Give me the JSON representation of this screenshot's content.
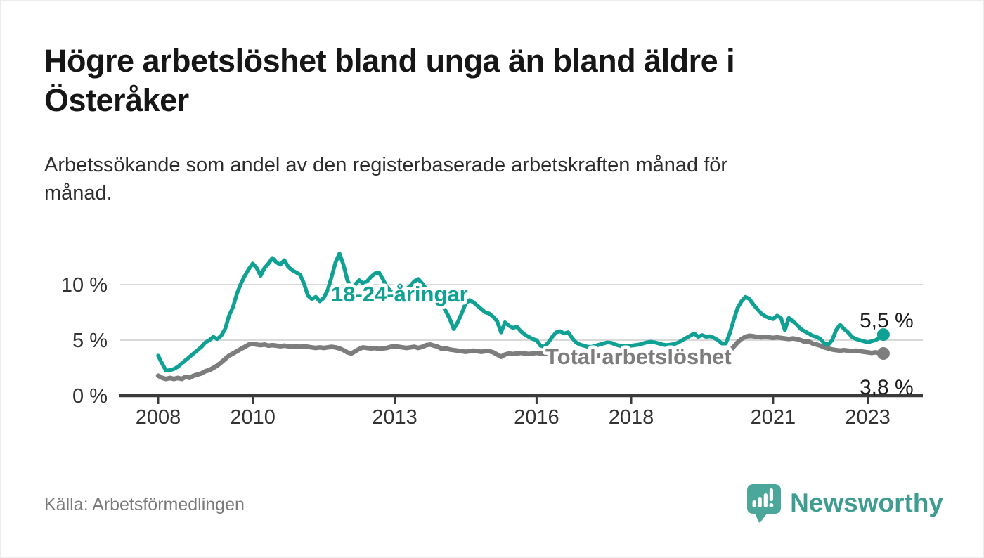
{
  "header": {
    "title_lines": [
      "Högre arbetslöshet bland unga än bland äldre i",
      "Österåker"
    ],
    "subtitle_lines": [
      "Arbetssökande som andel av den registerbaserade arbetskraften månad för",
      "månad."
    ]
  },
  "chart_data": {
    "type": "line",
    "unit": "%",
    "frequency": "monthly",
    "x_start": {
      "year": 2008,
      "month": 1
    },
    "x_end": {
      "year": 2023,
      "month": 5
    },
    "x_tick_years": [
      2008,
      2010,
      2013,
      2016,
      2018,
      2021,
      2023
    ],
    "y_ticks": [
      {
        "value": 0,
        "label": "0 %"
      },
      {
        "value": 5,
        "label": "5 %"
      },
      {
        "value": 10,
        "label": "10 %"
      }
    ],
    "ylim": [
      0,
      13.5
    ],
    "grid": "horizontal",
    "series": [
      {
        "name": "18-24-åringar",
        "color": "#10A195",
        "end_label": "5,5 %",
        "last_value": 5.5,
        "values": [
          3.6,
          2.9,
          2.25,
          2.3,
          2.4,
          2.6,
          2.9,
          3.2,
          3.5,
          3.8,
          4.1,
          4.4,
          4.8,
          5.0,
          5.3,
          5.1,
          5.4,
          6.0,
          7.2,
          8.0,
          9.2,
          10.1,
          10.8,
          11.4,
          11.9,
          11.5,
          10.8,
          11.5,
          11.9,
          12.4,
          12.0,
          11.8,
          12.2,
          11.6,
          11.3,
          11.1,
          10.9,
          10.1,
          9.0,
          8.7,
          8.9,
          8.5,
          8.8,
          9.5,
          10.7,
          12.0,
          12.8,
          11.8,
          10.4,
          9.7,
          10.0,
          10.4,
          10.1,
          10.3,
          10.7,
          11.0,
          11.1,
          10.5,
          9.8,
          9.4,
          9.1,
          9.5,
          9.8,
          9.6,
          9.9,
          10.3,
          10.5,
          10.1,
          9.6,
          9.2,
          8.8,
          8.5,
          8.2,
          7.6,
          6.9,
          6.0,
          6.6,
          7.4,
          8.3,
          8.6,
          8.4,
          8.1,
          7.8,
          7.5,
          7.4,
          7.1,
          6.7,
          5.7,
          6.6,
          6.3,
          6.1,
          6.2,
          5.8,
          5.5,
          5.3,
          5.1,
          5.0,
          4.5,
          4.4,
          4.8,
          5.3,
          5.7,
          5.8,
          5.6,
          5.7,
          5.2,
          4.8,
          4.6,
          4.5,
          4.4,
          4.4,
          4.5,
          4.6,
          4.7,
          4.8,
          4.75,
          4.6,
          4.5,
          4.45,
          4.5,
          4.5,
          4.55,
          4.6,
          4.7,
          4.8,
          4.85,
          4.8,
          4.7,
          4.6,
          4.55,
          4.6,
          4.65,
          4.8,
          5.0,
          5.2,
          5.4,
          5.6,
          5.3,
          5.45,
          5.3,
          5.35,
          5.2,
          5.0,
          4.7,
          4.7,
          5.6,
          6.8,
          7.9,
          8.5,
          8.9,
          8.7,
          8.2,
          7.8,
          7.4,
          7.15,
          7.0,
          6.9,
          7.2,
          7.0,
          5.9,
          7.0,
          6.7,
          6.4,
          6.0,
          5.8,
          5.6,
          5.4,
          5.3,
          5.1,
          4.7,
          4.6,
          5.0,
          5.9,
          6.4,
          6.0,
          5.7,
          5.3,
          5.1,
          5.0,
          4.9,
          4.8,
          4.9,
          5.0,
          5.2,
          5.5
        ]
      },
      {
        "name": "Total arbetslöshet",
        "color": "#7D7D7D",
        "end_label": "3,8 %",
        "last_value": 3.8,
        "values": [
          1.8,
          1.6,
          1.5,
          1.6,
          1.5,
          1.6,
          1.5,
          1.7,
          1.6,
          1.8,
          1.9,
          2.0,
          2.2,
          2.3,
          2.5,
          2.7,
          3.0,
          3.3,
          3.6,
          3.8,
          4.0,
          4.2,
          4.4,
          4.6,
          4.65,
          4.6,
          4.55,
          4.6,
          4.5,
          4.55,
          4.5,
          4.45,
          4.5,
          4.45,
          4.4,
          4.45,
          4.4,
          4.45,
          4.4,
          4.35,
          4.3,
          4.35,
          4.3,
          4.35,
          4.4,
          4.35,
          4.25,
          4.1,
          3.9,
          3.8,
          4.0,
          4.2,
          4.35,
          4.3,
          4.25,
          4.3,
          4.2,
          4.25,
          4.3,
          4.4,
          4.45,
          4.4,
          4.35,
          4.3,
          4.35,
          4.4,
          4.3,
          4.4,
          4.55,
          4.6,
          4.5,
          4.4,
          4.2,
          4.25,
          4.15,
          4.1,
          4.05,
          4.0,
          3.95,
          4.0,
          4.05,
          4.0,
          3.95,
          4.0,
          4.0,
          3.9,
          3.7,
          3.5,
          3.7,
          3.8,
          3.75,
          3.8,
          3.85,
          3.8,
          3.75,
          3.8,
          3.85,
          3.8,
          3.75,
          3.8,
          3.85,
          3.8,
          3.75,
          3.7,
          3.75,
          3.7,
          3.65,
          3.7,
          3.7,
          3.65,
          3.6,
          3.55,
          3.6,
          3.65,
          3.6,
          3.55,
          3.5,
          3.55,
          3.5,
          3.45,
          3.4,
          3.35,
          3.3,
          3.25,
          3.3,
          3.35,
          3.3,
          3.25,
          3.2,
          3.25,
          3.3,
          3.35,
          3.4,
          3.45,
          3.5,
          3.55,
          3.5,
          3.55,
          3.6,
          3.55,
          3.6,
          3.65,
          3.7,
          3.8,
          3.9,
          4.0,
          4.4,
          4.8,
          5.1,
          5.3,
          5.4,
          5.35,
          5.3,
          5.25,
          5.3,
          5.25,
          5.2,
          5.25,
          5.2,
          5.15,
          5.1,
          5.15,
          5.1,
          5.0,
          4.85,
          4.9,
          4.7,
          4.6,
          4.5,
          4.35,
          4.25,
          4.15,
          4.1,
          4.05,
          4.1,
          4.05,
          4.0,
          4.05,
          4.0,
          3.95,
          3.9,
          3.85,
          3.9,
          3.85,
          3.8
        ]
      }
    ],
    "colors": {
      "grid": "#d9d9d9",
      "axis": "#3b3b3b",
      "tick_label": "#333333"
    }
  },
  "footer": {
    "source": "Källa: Arbetsförmedlingen",
    "brand": "Newsworthy",
    "brand_color": "#3E9C90",
    "logo_color": "#4BA79A"
  }
}
